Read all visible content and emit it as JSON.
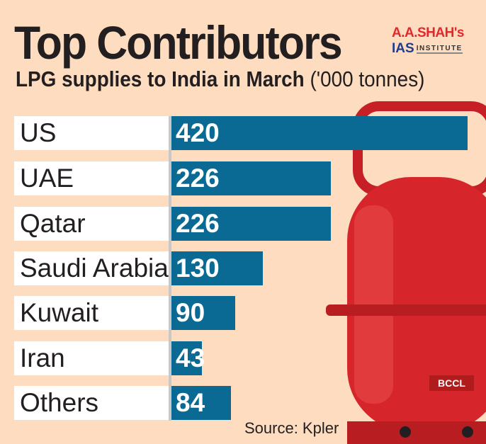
{
  "title": "Top Contributors",
  "subtitle": "LPG supplies to India in March",
  "unit": "('000 tonnes)",
  "logo": {
    "line1": "A.A.SHAH's",
    "ias": "IAS",
    "institute": "INSTITUTE"
  },
  "source": "Source: Kpler",
  "credit": "BCCL",
  "colors": {
    "bar": "#0a6a93",
    "background": "#fddcbf",
    "cylinder": "#d7262b"
  },
  "chart_data": {
    "type": "bar",
    "orientation": "horizontal",
    "title": "Top Contributors",
    "subtitle": "LPG supplies to India in March ('000 tonnes)",
    "categories": [
      "US",
      "UAE",
      "Qatar",
      "Saudi Arabia",
      "Kuwait",
      "Iran",
      "Others"
    ],
    "values": [
      420,
      226,
      226,
      130,
      90,
      43,
      84
    ],
    "labels": [
      "420",
      "226",
      "226",
      "130",
      "90",
      "43",
      "84"
    ],
    "xlim": [
      0,
      420
    ]
  }
}
